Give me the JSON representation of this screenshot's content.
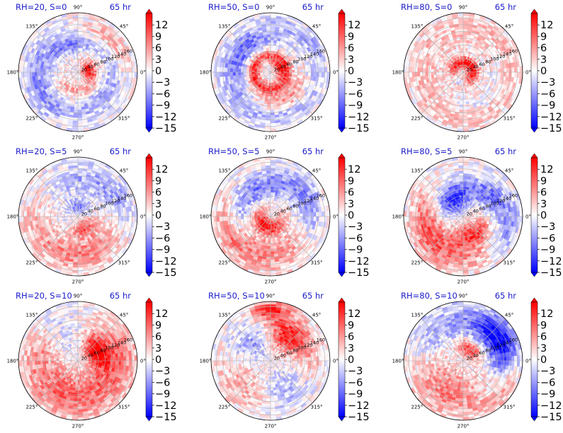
{
  "chart_data": {
    "type": "heatmap",
    "layout": {
      "rows": 3,
      "cols": 3
    },
    "time_label": "65 hr",
    "projection": "polar",
    "angle_ticks": [
      "0°",
      "45°",
      "90°",
      "135°",
      "180°",
      "225°",
      "270°",
      "315°"
    ],
    "radius_ticks": [
      "20",
      "40",
      "60",
      "80",
      "100",
      "120",
      "140",
      "160"
    ],
    "radius_label_angle_deg": 22.5,
    "rlim": [
      0,
      175
    ],
    "grid": true,
    "colormap": "bwr",
    "colors": {
      "low": "#0000ff",
      "mid": "#ffffff",
      "high": "#ff0000",
      "title": "#1a1acc"
    },
    "colorbar": {
      "ticks": [
        "12",
        "9",
        "6",
        "3",
        "0",
        "−3",
        "−6",
        "−9",
        "−12",
        "−15"
      ],
      "vmin": -15,
      "vmax": 15,
      "extend": "both"
    },
    "panels": [
      {
        "title": "RH=20, S=0",
        "time": "65 hr",
        "features": [
          {
            "r": 30,
            "theta": 10,
            "dr": 22,
            "dt": 45,
            "v": 14
          },
          {
            "r": 85,
            "theta": 110,
            "dr": 25,
            "dt": 60,
            "v": -7
          },
          {
            "r": 125,
            "theta": 200,
            "dr": 35,
            "dt": 80,
            "v": -6
          },
          {
            "r": 55,
            "theta": 280,
            "dr": 25,
            "dt": 90,
            "v": 5
          },
          {
            "r": 100,
            "theta": 330,
            "dr": 30,
            "dt": 60,
            "v": -5
          },
          {
            "r": 135,
            "theta": 45,
            "dr": 25,
            "dt": 40,
            "v": 5
          }
        ]
      },
      {
        "title": "RH=50, S=0",
        "time": "65 hr",
        "features": [
          {
            "r": 35,
            "theta": 20,
            "dr": 22,
            "dt": 60,
            "v": 14
          },
          {
            "r": 50,
            "theta": 200,
            "dr": 18,
            "dt": 150,
            "v": 13
          },
          {
            "r": 100,
            "theta": 140,
            "dr": 30,
            "dt": 70,
            "v": -8
          },
          {
            "r": 90,
            "theta": 300,
            "dr": 25,
            "dt": 50,
            "v": 7
          },
          {
            "r": 130,
            "theta": 250,
            "dr": 30,
            "dt": 100,
            "v": -4
          },
          {
            "r": 145,
            "theta": 45,
            "dr": 25,
            "dt": 60,
            "v": -4
          }
        ]
      },
      {
        "title": "RH=80, S=0",
        "time": "65 hr",
        "features": [
          {
            "r": 28,
            "theta": 30,
            "dr": 18,
            "dt": 240,
            "v": 15
          },
          {
            "r": 30,
            "theta": 250,
            "dr": 14,
            "dt": 60,
            "v": -12
          },
          {
            "r": 110,
            "theta": 180,
            "dr": 60,
            "dt": 200,
            "v": 3
          },
          {
            "r": 140,
            "theta": 0,
            "dr": 30,
            "dt": 120,
            "v": 2
          },
          {
            "r": 100,
            "theta": 300,
            "dr": 25,
            "dt": 60,
            "v": -3
          }
        ]
      },
      {
        "title": "RH=20, S=5",
        "time": "65 hr",
        "features": [
          {
            "r": 40,
            "theta": 300,
            "dr": 25,
            "dt": 50,
            "v": 10
          },
          {
            "r": 30,
            "theta": 90,
            "dr": 22,
            "dt": 60,
            "v": -7
          },
          {
            "r": 120,
            "theta": 200,
            "dr": 45,
            "dt": 80,
            "v": 5
          },
          {
            "r": 110,
            "theta": 300,
            "dr": 45,
            "dt": 70,
            "v": 6
          },
          {
            "r": 110,
            "theta": 90,
            "dr": 45,
            "dt": 80,
            "v": -5
          },
          {
            "r": 130,
            "theta": 20,
            "dr": 30,
            "dt": 40,
            "v": -4
          }
        ]
      },
      {
        "title": "RH=50, S=5",
        "time": "65 hr",
        "features": [
          {
            "r": 30,
            "theta": 240,
            "dr": 25,
            "dt": 110,
            "v": 14
          },
          {
            "r": 110,
            "theta": 260,
            "dr": 50,
            "dt": 90,
            "v": 7
          },
          {
            "r": 90,
            "theta": 120,
            "dr": 40,
            "dt": 80,
            "v": -8
          },
          {
            "r": 120,
            "theta": 20,
            "dr": 35,
            "dt": 50,
            "v": -7
          },
          {
            "r": 140,
            "theta": 200,
            "dr": 30,
            "dt": 40,
            "v": 4
          }
        ]
      },
      {
        "title": "RH=80, S=5",
        "time": "65 hr",
        "features": [
          {
            "r": 60,
            "theta": 120,
            "dr": 45,
            "dt": 50,
            "v": -14
          },
          {
            "r": 60,
            "theta": 300,
            "dr": 35,
            "dt": 60,
            "v": 12
          },
          {
            "r": 100,
            "theta": 180,
            "dr": 45,
            "dt": 60,
            "v": 6
          },
          {
            "r": 120,
            "theta": 240,
            "dr": 45,
            "dt": 70,
            "v": 7
          },
          {
            "r": 100,
            "theta": 30,
            "dr": 40,
            "dt": 50,
            "v": -8
          },
          {
            "r": 140,
            "theta": 345,
            "dr": 25,
            "dt": 30,
            "v": -6
          }
        ]
      },
      {
        "title": "RH=20, S=10",
        "time": "65 hr",
        "features": [
          {
            "r": 100,
            "theta": 20,
            "dr": 70,
            "dt": 70,
            "v": 9
          },
          {
            "r": 100,
            "theta": 240,
            "dr": 70,
            "dt": 100,
            "v": 9
          },
          {
            "r": 100,
            "theta": 110,
            "dr": 70,
            "dt": 70,
            "v": -5
          },
          {
            "r": 120,
            "theta": 160,
            "dr": 45,
            "dt": 30,
            "v": 3
          },
          {
            "r": 60,
            "theta": 30,
            "dr": 30,
            "dt": 40,
            "v": 12
          }
        ]
      },
      {
        "title": "RH=50, S=10",
        "time": "65 hr",
        "features": [
          {
            "r": 90,
            "theta": 60,
            "dr": 55,
            "dt": 50,
            "v": 13
          },
          {
            "r": 150,
            "theta": 90,
            "dr": 25,
            "dt": 20,
            "v": 12
          },
          {
            "r": 80,
            "theta": 130,
            "dr": 55,
            "dt": 50,
            "v": -7
          },
          {
            "r": 110,
            "theta": 220,
            "dr": 60,
            "dt": 60,
            "v": 5
          },
          {
            "r": 100,
            "theta": 300,
            "dr": 55,
            "dt": 50,
            "v": -5
          },
          {
            "r": 120,
            "theta": 0,
            "dr": 40,
            "dt": 40,
            "v": 3
          }
        ]
      },
      {
        "title": "RH=80, S=10",
        "time": "65 hr",
        "features": [
          {
            "r": 120,
            "theta": 30,
            "dr": 50,
            "dt": 45,
            "v": -15
          },
          {
            "r": 100,
            "theta": 230,
            "dr": 70,
            "dt": 80,
            "v": 8
          },
          {
            "r": 110,
            "theta": 130,
            "dr": 55,
            "dt": 70,
            "v": -6
          },
          {
            "r": 40,
            "theta": 60,
            "dr": 28,
            "dt": 60,
            "v": 12
          },
          {
            "r": 150,
            "theta": 330,
            "dr": 25,
            "dt": 40,
            "v": 5
          }
        ]
      }
    ]
  }
}
